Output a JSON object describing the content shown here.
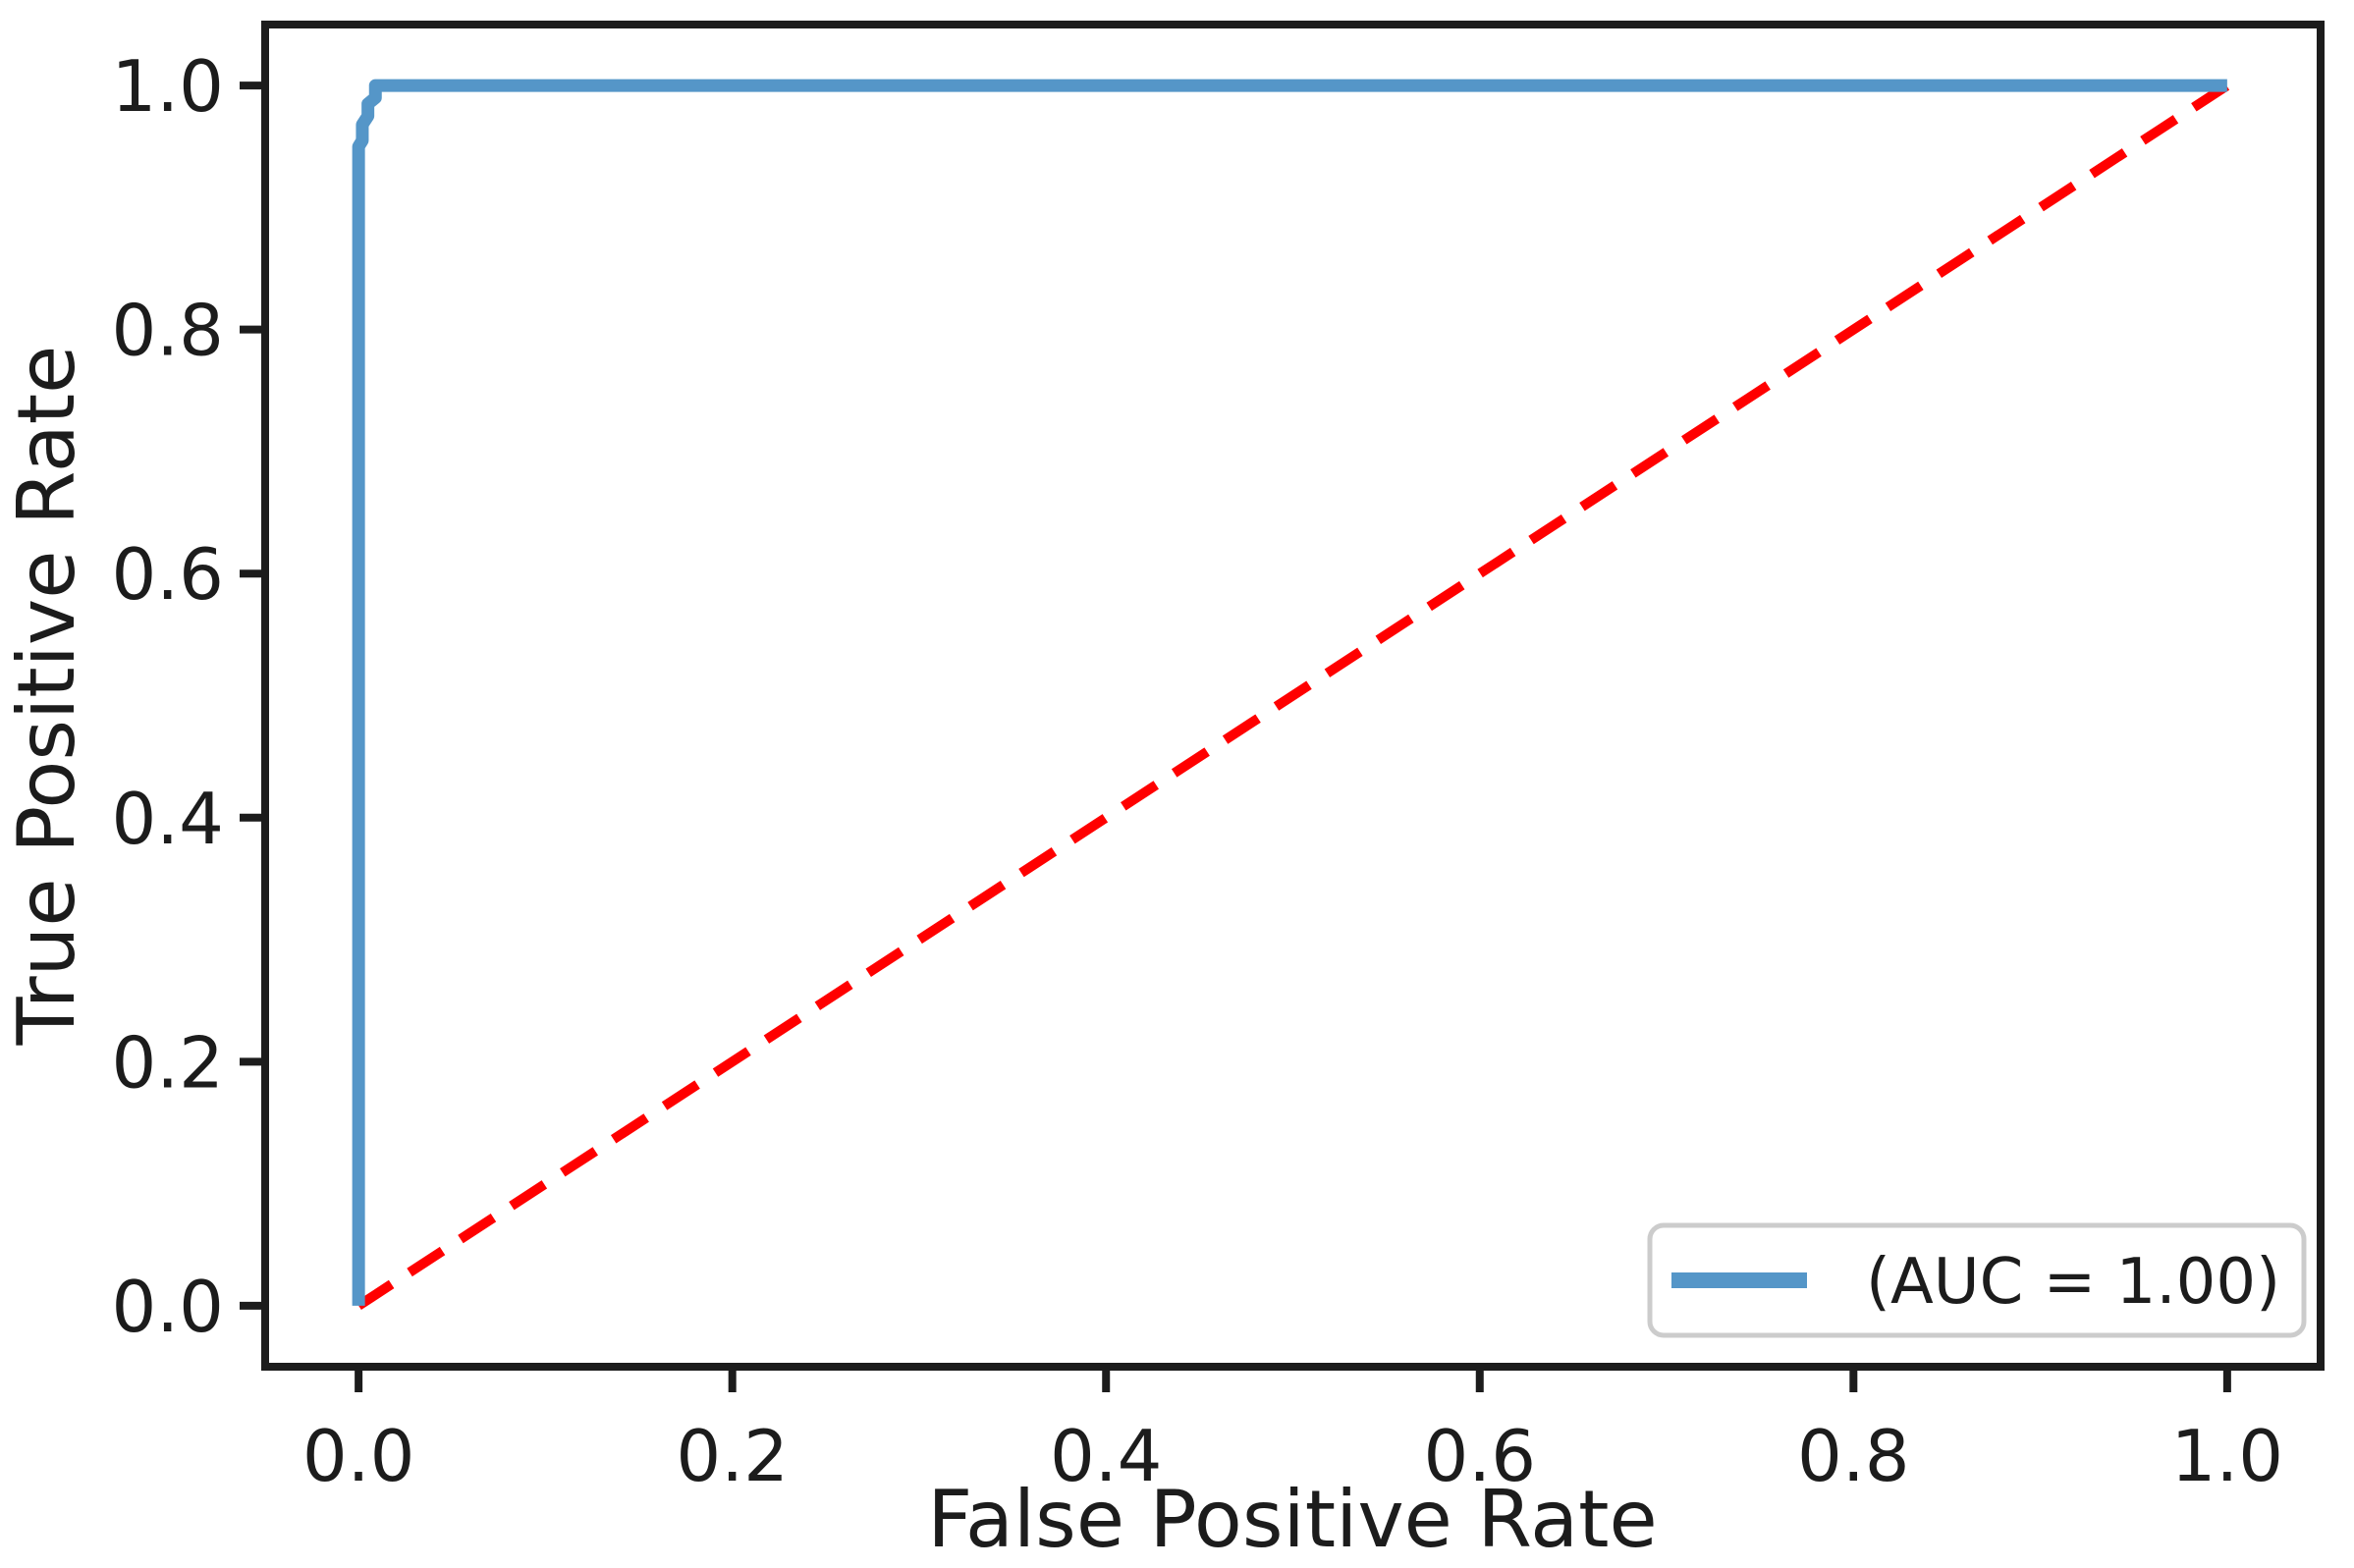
{
  "chart_data": {
    "type": "line",
    "title": "",
    "xlabel": "False Positive Rate",
    "ylabel": "True Positive Rate",
    "xlim": [
      -0.05,
      1.05
    ],
    "ylim": [
      -0.05,
      1.05
    ],
    "grid": false,
    "x_tick_labels": [
      "0.0",
      "0.2",
      "0.4",
      "0.6",
      "0.8",
      "1.0"
    ],
    "x_tick_values": [
      0.0,
      0.2,
      0.4,
      0.6,
      0.8,
      1.0
    ],
    "y_tick_labels": [
      "0.0",
      "0.2",
      "0.4",
      "0.6",
      "0.8",
      "1.0"
    ],
    "y_tick_values": [
      0.0,
      0.2,
      0.4,
      0.6,
      0.8,
      1.0
    ],
    "series": [
      {
        "name": "roc-curve",
        "legend_label": "(AUC = 1.00)",
        "auc": "1.00",
        "color": "#5596c8",
        "style": "solid",
        "line_width": 13,
        "x": [
          0.0,
          0.0,
          0.002,
          0.002,
          0.005,
          0.005,
          0.009,
          0.009,
          1.0
        ],
        "y": [
          0.0,
          0.95,
          0.955,
          0.968,
          0.975,
          0.985,
          0.99,
          1.0,
          1.0
        ]
      },
      {
        "name": "chance-diagonal",
        "legend_label": null,
        "color": "#ff0000",
        "style": "dashed",
        "line_width": 10,
        "x": [
          0.0,
          1.0
        ],
        "y": [
          0.0,
          1.0
        ]
      }
    ],
    "legend": {
      "position": "lower right",
      "entries": [
        "(AUC = 1.00)"
      ]
    },
    "colors": {
      "axis": "#1c1c1c",
      "background": "#ffffff",
      "legend_border": "#cccccc",
      "legend_fill": "#ffffff"
    }
  }
}
